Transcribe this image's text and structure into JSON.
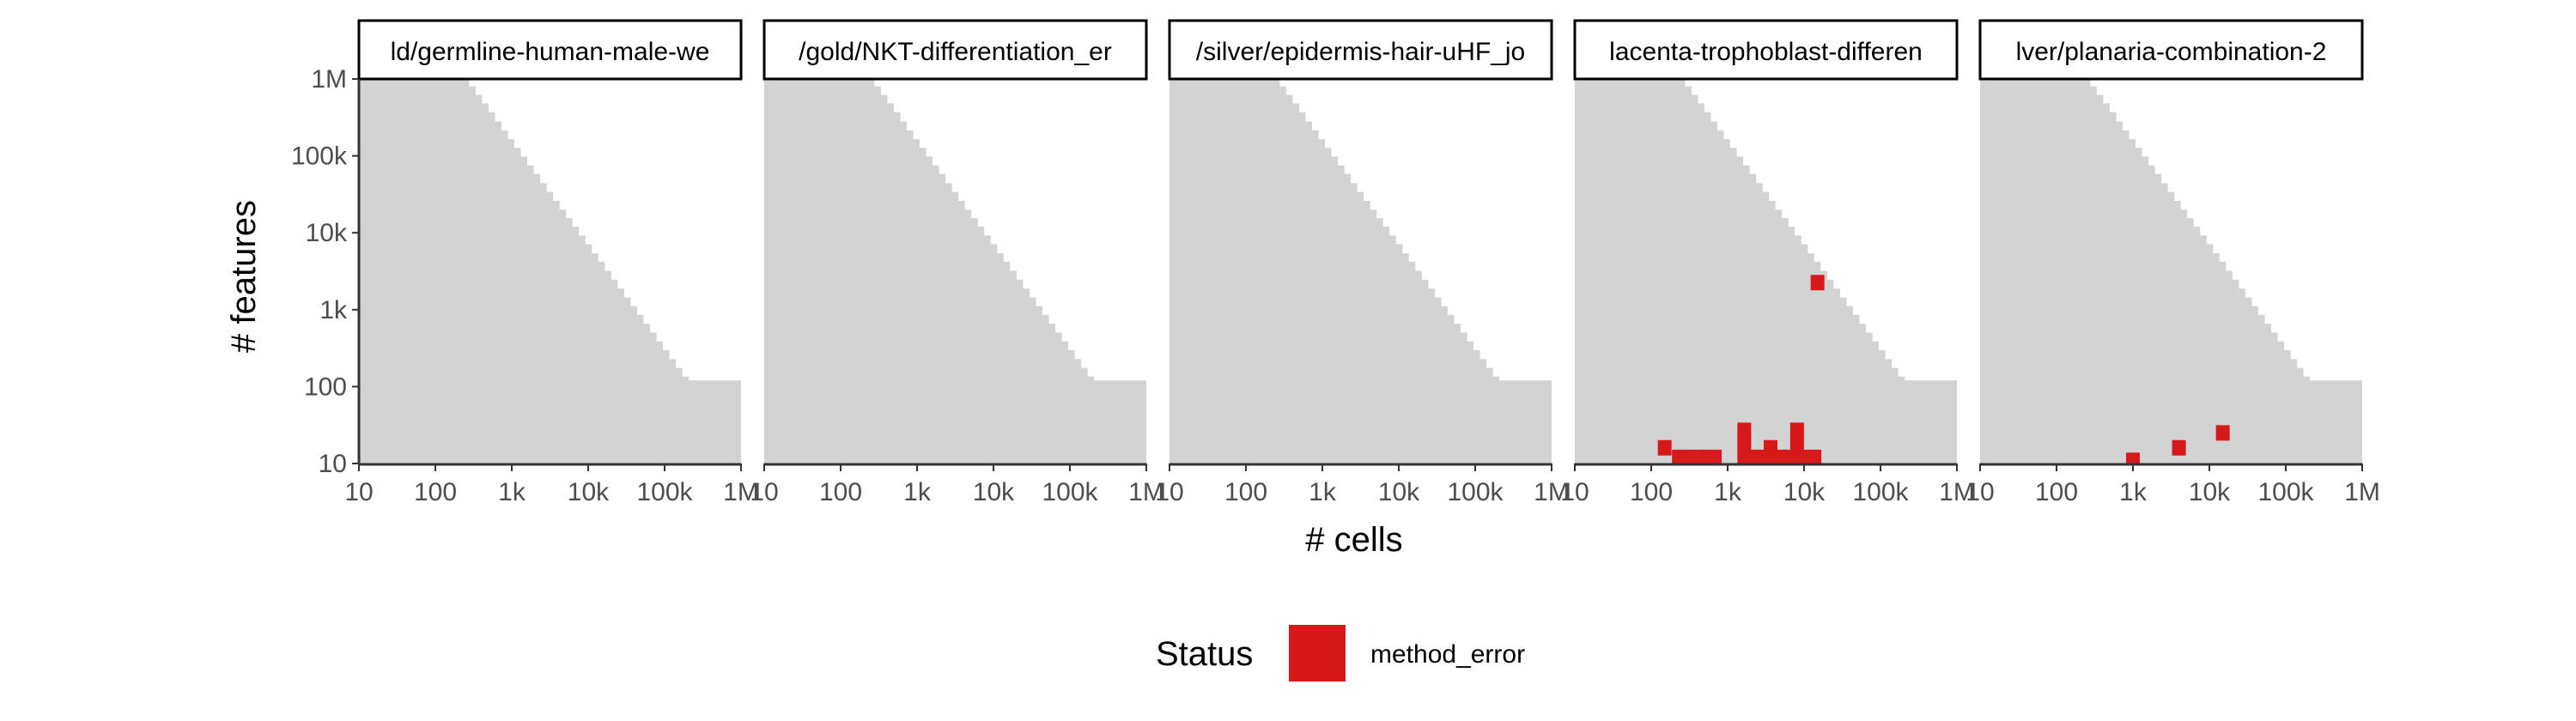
{
  "chart_data": {
    "type": "heatmap",
    "xlabel": "# cells",
    "ylabel": "# features",
    "x_scale": "log10",
    "y_scale": "log10",
    "xlim": [
      10,
      1000000
    ],
    "ylim": [
      10,
      1000000
    ],
    "x_ticks": [
      {
        "value": 10,
        "label": "10"
      },
      {
        "value": 100,
        "label": "100"
      },
      {
        "value": 1000,
        "label": "1k"
      },
      {
        "value": 10000,
        "label": "10k"
      },
      {
        "value": 100000,
        "label": "100k"
      },
      {
        "value": 1000000,
        "label": "1M"
      }
    ],
    "y_ticks": [
      {
        "value": 10,
        "label": "10"
      },
      {
        "value": 100,
        "label": "100"
      },
      {
        "value": 1000,
        "label": "1k"
      },
      {
        "value": 10000,
        "label": "10k"
      },
      {
        "value": 100000,
        "label": "100k"
      },
      {
        "value": 1000000,
        "label": "1M"
      }
    ],
    "background_region": {
      "description_free": true,
      "color": "#d3d3d3",
      "boundary": [
        [
          10,
          1000000
        ],
        [
          12,
          1000000
        ],
        [
          15,
          1000000
        ],
        [
          18,
          1000000
        ],
        [
          22,
          1000000
        ],
        [
          27,
          1000000
        ],
        [
          33,
          1000000
        ],
        [
          40,
          1000000
        ],
        [
          48,
          1000000
        ],
        [
          59,
          1000000
        ],
        [
          71,
          1000000
        ],
        [
          86,
          1000000
        ],
        [
          105,
          1000000
        ],
        [
          127,
          1000000
        ],
        [
          155,
          1000000
        ],
        [
          188,
          1000000
        ],
        [
          228,
          1000000
        ],
        [
          277,
          800000
        ],
        [
          337,
          620000
        ],
        [
          409,
          480000
        ],
        [
          497,
          370000
        ],
        [
          604,
          280000
        ],
        [
          733,
          215000
        ],
        [
          891,
          165000
        ],
        [
          1082,
          127000
        ],
        [
          1314,
          98000
        ],
        [
          1597,
          75000
        ],
        [
          1940,
          58000
        ],
        [
          2357,
          44000
        ],
        [
          2863,
          34000
        ],
        [
          3479,
          26000
        ],
        [
          4226,
          20000
        ],
        [
          5134,
          15500
        ],
        [
          6237,
          12000
        ],
        [
          7577,
          9200
        ],
        [
          9205,
          7100
        ],
        [
          11183,
          5400
        ],
        [
          13586,
          4200
        ],
        [
          16505,
          3200
        ],
        [
          20051,
          2450
        ],
        [
          24359,
          1880
        ],
        [
          29592,
          1450
        ],
        [
          35950,
          1110
        ],
        [
          43674,
          855
        ],
        [
          53058,
          656
        ],
        [
          64457,
          504
        ],
        [
          78305,
          387
        ],
        [
          95129,
          297
        ],
        [
          115567,
          228
        ],
        [
          140397,
          175
        ],
        [
          170561,
          135
        ],
        [
          207204,
          120
        ],
        [
          251722,
          120
        ],
        [
          305804,
          120
        ],
        [
          371506,
          120
        ],
        [
          451322,
          120
        ],
        [
          548286,
          120
        ],
        [
          666083,
          120
        ],
        [
          809189,
          120
        ],
        [
          1000000,
          120
        ]
      ]
    },
    "panels": [
      {
        "title": "ld/germline-human-male-we",
        "cells": []
      },
      {
        "title": "/gold/NKT-differentiation_er",
        "cells": []
      },
      {
        "title": "/silver/epidermis-hair-uHF_jo",
        "cells": []
      },
      {
        "title": "lacenta-trophoblast-differen",
        "cells": [
          {
            "x": 150,
            "y": 16,
            "status": "method_error"
          },
          {
            "x": 230,
            "y": 12,
            "status": "method_error"
          },
          {
            "x": 300,
            "y": 12,
            "status": "method_error"
          },
          {
            "x": 400,
            "y": 12,
            "status": "method_error"
          },
          {
            "x": 520,
            "y": 12,
            "status": "method_error"
          },
          {
            "x": 680,
            "y": 12,
            "status": "method_error"
          },
          {
            "x": 1650,
            "y": 12,
            "status": "method_error"
          },
          {
            "x": 1650,
            "y": 16,
            "status": "method_error"
          },
          {
            "x": 1650,
            "y": 21,
            "status": "method_error"
          },
          {
            "x": 1650,
            "y": 27,
            "status": "method_error"
          },
          {
            "x": 2150,
            "y": 12,
            "status": "method_error"
          },
          {
            "x": 2800,
            "y": 12,
            "status": "method_error"
          },
          {
            "x": 3650,
            "y": 12,
            "status": "method_error"
          },
          {
            "x": 3650,
            "y": 16,
            "status": "method_error"
          },
          {
            "x": 4750,
            "y": 12,
            "status": "method_error"
          },
          {
            "x": 6200,
            "y": 12,
            "status": "method_error"
          },
          {
            "x": 8100,
            "y": 12,
            "status": "method_error"
          },
          {
            "x": 8100,
            "y": 16,
            "status": "method_error"
          },
          {
            "x": 8100,
            "y": 21,
            "status": "method_error"
          },
          {
            "x": 8100,
            "y": 27,
            "status": "method_error"
          },
          {
            "x": 10500,
            "y": 12,
            "status": "method_error"
          },
          {
            "x": 13700,
            "y": 12,
            "status": "method_error"
          },
          {
            "x": 15000,
            "y": 2250,
            "status": "method_error"
          }
        ]
      },
      {
        "title": "lver/planaria-combination-2",
        "cells": [
          {
            "x": 1000,
            "y": 11,
            "status": "method_error"
          },
          {
            "x": 4000,
            "y": 16,
            "status": "method_error"
          },
          {
            "x": 15000,
            "y": 25,
            "status": "method_error"
          }
        ]
      }
    ],
    "legend": {
      "title": "Status",
      "placement": "bottom",
      "entries": [
        {
          "label": "method_error",
          "color": "#d7191c"
        }
      ]
    },
    "colors": {
      "background_region": "#d3d3d3",
      "method_error": "#d7191c",
      "strip_border": "#000000",
      "axis": "#333333"
    }
  }
}
